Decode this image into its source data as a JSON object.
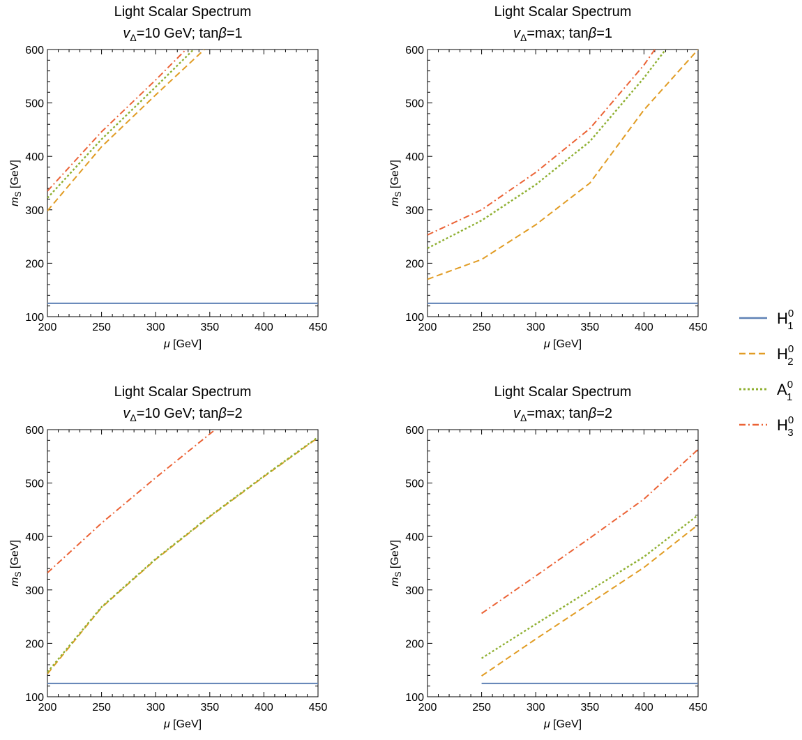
{
  "legend": {
    "placement": "right",
    "entries": [
      {
        "symbol": "H",
        "sup": "0",
        "sub": "1",
        "color": "#5E81B5",
        "dash": "solid"
      },
      {
        "symbol": "H",
        "sup": "0",
        "sub": "2",
        "color": "#E19C24",
        "dash": "dashed"
      },
      {
        "symbol": "A",
        "sup": "0",
        "sub": "1",
        "color": "#8FB032",
        "dash": "dotted"
      },
      {
        "symbol": "H",
        "sup": "0",
        "sub": "3",
        "color": "#EB6235",
        "dash": "dashdot"
      }
    ]
  },
  "chart_data": [
    {
      "type": "line",
      "title": "Light Scalar Spectrum",
      "subtitle": {
        "v": "v",
        "v_sub": "Δ",
        "rest": "=10 GeV; tan",
        "beta": "β",
        "tail": "=1"
      },
      "xlabel": {
        "mu": "μ",
        "unit": " [GeV]"
      },
      "ylabel": {
        "m": "m",
        "m_sub": "S",
        "unit": " [GeV]"
      },
      "xlim": [
        200,
        450
      ],
      "ylim": [
        100,
        600
      ],
      "xticks": [
        200,
        250,
        300,
        350,
        400,
        450
      ],
      "yticks": [
        100,
        200,
        300,
        400,
        500,
        600
      ],
      "series": [
        {
          "name": "H_1^0",
          "x": [
            200,
            450
          ],
          "y": [
            125,
            125
          ]
        },
        {
          "name": "H_2^0",
          "x": [
            200,
            250,
            300,
            345
          ],
          "y": [
            298,
            418,
            515,
            600
          ]
        },
        {
          "name": "A_1^0",
          "x": [
            200,
            250,
            300,
            335
          ],
          "y": [
            322,
            432,
            530,
            600
          ]
        },
        {
          "name": "H_3^0",
          "x": [
            200,
            250,
            300,
            328
          ],
          "y": [
            335,
            446,
            543,
            600
          ]
        }
      ]
    },
    {
      "type": "line",
      "title": "Light Scalar Spectrum",
      "subtitle": {
        "v": "v",
        "v_sub": "Δ",
        "rest": "=max; tan",
        "beta": "β",
        "tail": "=1"
      },
      "xlabel": {
        "mu": "μ",
        "unit": " [GeV]"
      },
      "ylabel": {
        "m": "m",
        "m_sub": "S",
        "unit": " [GeV]"
      },
      "xlim": [
        200,
        450
      ],
      "ylim": [
        100,
        600
      ],
      "xticks": [
        200,
        250,
        300,
        350,
        400,
        450
      ],
      "yticks": [
        100,
        200,
        300,
        400,
        500,
        600
      ],
      "series": [
        {
          "name": "H_1^0",
          "x": [
            200,
            450
          ],
          "y": [
            125,
            125
          ]
        },
        {
          "name": "H_2^0",
          "x": [
            200,
            250,
            300,
            350,
            400,
            450
          ],
          "y": [
            170,
            207,
            272,
            350,
            487,
            600
          ]
        },
        {
          "name": "A_1^0",
          "x": [
            200,
            250,
            300,
            350,
            400,
            420
          ],
          "y": [
            228,
            280,
            347,
            428,
            547,
            600
          ]
        },
        {
          "name": "H_3^0",
          "x": [
            200,
            250,
            300,
            350,
            400,
            410
          ],
          "y": [
            253,
            300,
            370,
            452,
            571,
            600
          ]
        }
      ]
    },
    {
      "type": "line",
      "title": "Light Scalar Spectrum",
      "subtitle": {
        "v": "v",
        "v_sub": "Δ",
        "rest": "=10 GeV; tan",
        "beta": "β",
        "tail": "=2"
      },
      "xlabel": {
        "mu": "μ",
        "unit": " [GeV]"
      },
      "ylabel": {
        "m": "m",
        "m_sub": "S",
        "unit": " [GeV]"
      },
      "xlim": [
        200,
        450
      ],
      "ylim": [
        100,
        600
      ],
      "xticks": [
        200,
        250,
        300,
        350,
        400,
        450
      ],
      "yticks": [
        100,
        200,
        300,
        400,
        500,
        600
      ],
      "series": [
        {
          "name": "H_1^0",
          "x": [
            200,
            450
          ],
          "y": [
            125,
            125
          ]
        },
        {
          "name": "H_2^0",
          "x": [
            200,
            250,
            300,
            350,
            400,
            450
          ],
          "y": [
            143,
            267,
            357,
            437,
            512,
            585
          ]
        },
        {
          "name": "A_1^0",
          "x": [
            200,
            250,
            300,
            350,
            400,
            450
          ],
          "y": [
            146,
            268,
            358,
            438,
            513,
            586
          ]
        },
        {
          "name": "H_3^0",
          "x": [
            200,
            250,
            300,
            355
          ],
          "y": [
            332,
            425,
            510,
            600
          ]
        }
      ]
    },
    {
      "type": "line",
      "title": "Light Scalar Spectrum",
      "subtitle": {
        "v": "v",
        "v_sub": "Δ",
        "rest": "=max; tan",
        "beta": "β",
        "tail": "=2"
      },
      "xlabel": {
        "mu": "μ",
        "unit": " [GeV]"
      },
      "ylabel": {
        "m": "m",
        "m_sub": "S",
        "unit": " [GeV]"
      },
      "xlim": [
        200,
        450
      ],
      "ylim": [
        100,
        600
      ],
      "xticks": [
        200,
        250,
        300,
        350,
        400,
        450
      ],
      "yticks": [
        100,
        200,
        300,
        400,
        500,
        600
      ],
      "series": [
        {
          "name": "H_1^0",
          "x": [
            250,
            450
          ],
          "y": [
            125,
            125
          ]
        },
        {
          "name": "H_2^0",
          "x": [
            250,
            300,
            350,
            400,
            450
          ],
          "y": [
            139,
            208,
            275,
            342,
            422
          ]
        },
        {
          "name": "A_1^0",
          "x": [
            250,
            300,
            350,
            400,
            450
          ],
          "y": [
            172,
            236,
            299,
            362,
            440
          ]
        },
        {
          "name": "H_3^0",
          "x": [
            250,
            300,
            350,
            400,
            450
          ],
          "y": [
            256,
            326,
            397,
            470,
            563
          ]
        }
      ]
    }
  ]
}
